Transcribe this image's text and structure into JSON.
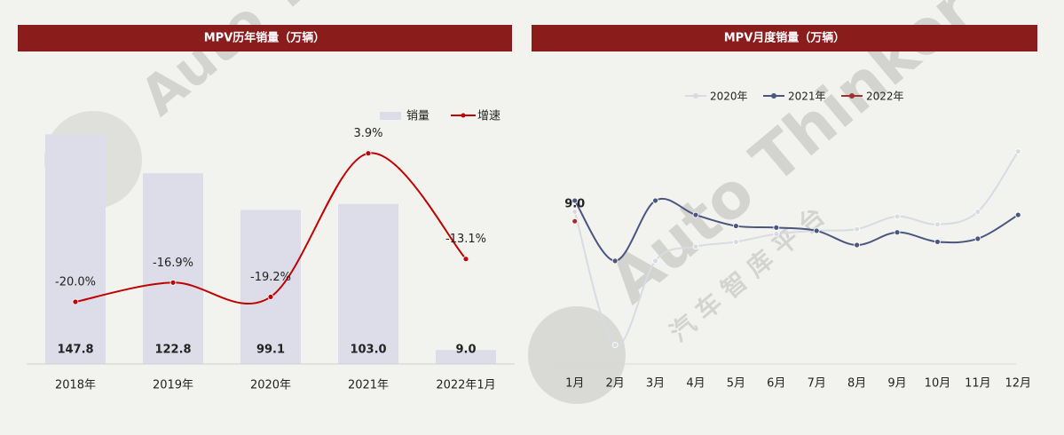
{
  "chart_data": [
    {
      "type": "bar",
      "title": "MPV历年销量（万辆）",
      "categories": [
        "2018年",
        "2019年",
        "2020年",
        "2021年",
        "2022年1月"
      ],
      "series": [
        {
          "name": "销量",
          "type": "bar",
          "color": "#dcdde8",
          "values": [
            147.8,
            122.8,
            99.1,
            103.0,
            9.0
          ],
          "value_labels": [
            "147.8",
            "122.8",
            "99.1",
            "103.0",
            "9.0"
          ]
        },
        {
          "name": "增速",
          "type": "line",
          "axis": "y2",
          "color": "#c00000",
          "values": [
            -20.0,
            -16.9,
            -19.2,
            3.9,
            -13.1
          ],
          "value_labels": [
            "-20.0%",
            "-16.9%",
            "-19.2%",
            "3.9%",
            "-13.1%"
          ]
        }
      ],
      "ylim": [
        0,
        160
      ],
      "y2lim": [
        -30,
        10
      ],
      "legend": "top-right"
    },
    {
      "type": "line",
      "title": "MPV月度销量（万辆）",
      "categories": [
        "1月",
        "2月",
        "3月",
        "4月",
        "5月",
        "6月",
        "7月",
        "8月",
        "9月",
        "10月",
        "11月",
        "12月"
      ],
      "series": [
        {
          "name": "2020年",
          "color": "#d9dbe3",
          "values": [
            9.6,
            1.2,
            6.5,
            7.4,
            7.7,
            8.2,
            8.4,
            8.5,
            9.3,
            8.8,
            9.6,
            13.4
          ]
        },
        {
          "name": "2021年",
          "color": "#4a5580",
          "values": [
            10.3,
            6.5,
            10.3,
            9.4,
            8.7,
            8.6,
            8.4,
            7.5,
            8.3,
            7.7,
            7.9,
            9.4
          ]
        },
        {
          "name": "2022年",
          "color": "#a33030",
          "values": [
            9.0,
            null,
            null,
            null,
            null,
            null,
            null,
            null,
            null,
            null,
            null,
            null
          ],
          "value_labels": [
            "9.0",
            null,
            null,
            null,
            null,
            null,
            null,
            null,
            null,
            null,
            null,
            null
          ]
        }
      ],
      "ylim": [
        0,
        15
      ],
      "legend": "top-center"
    }
  ],
  "watermark": {
    "brand": "Auto Thinker",
    "sub": "汽 车 智 库 平 台"
  }
}
